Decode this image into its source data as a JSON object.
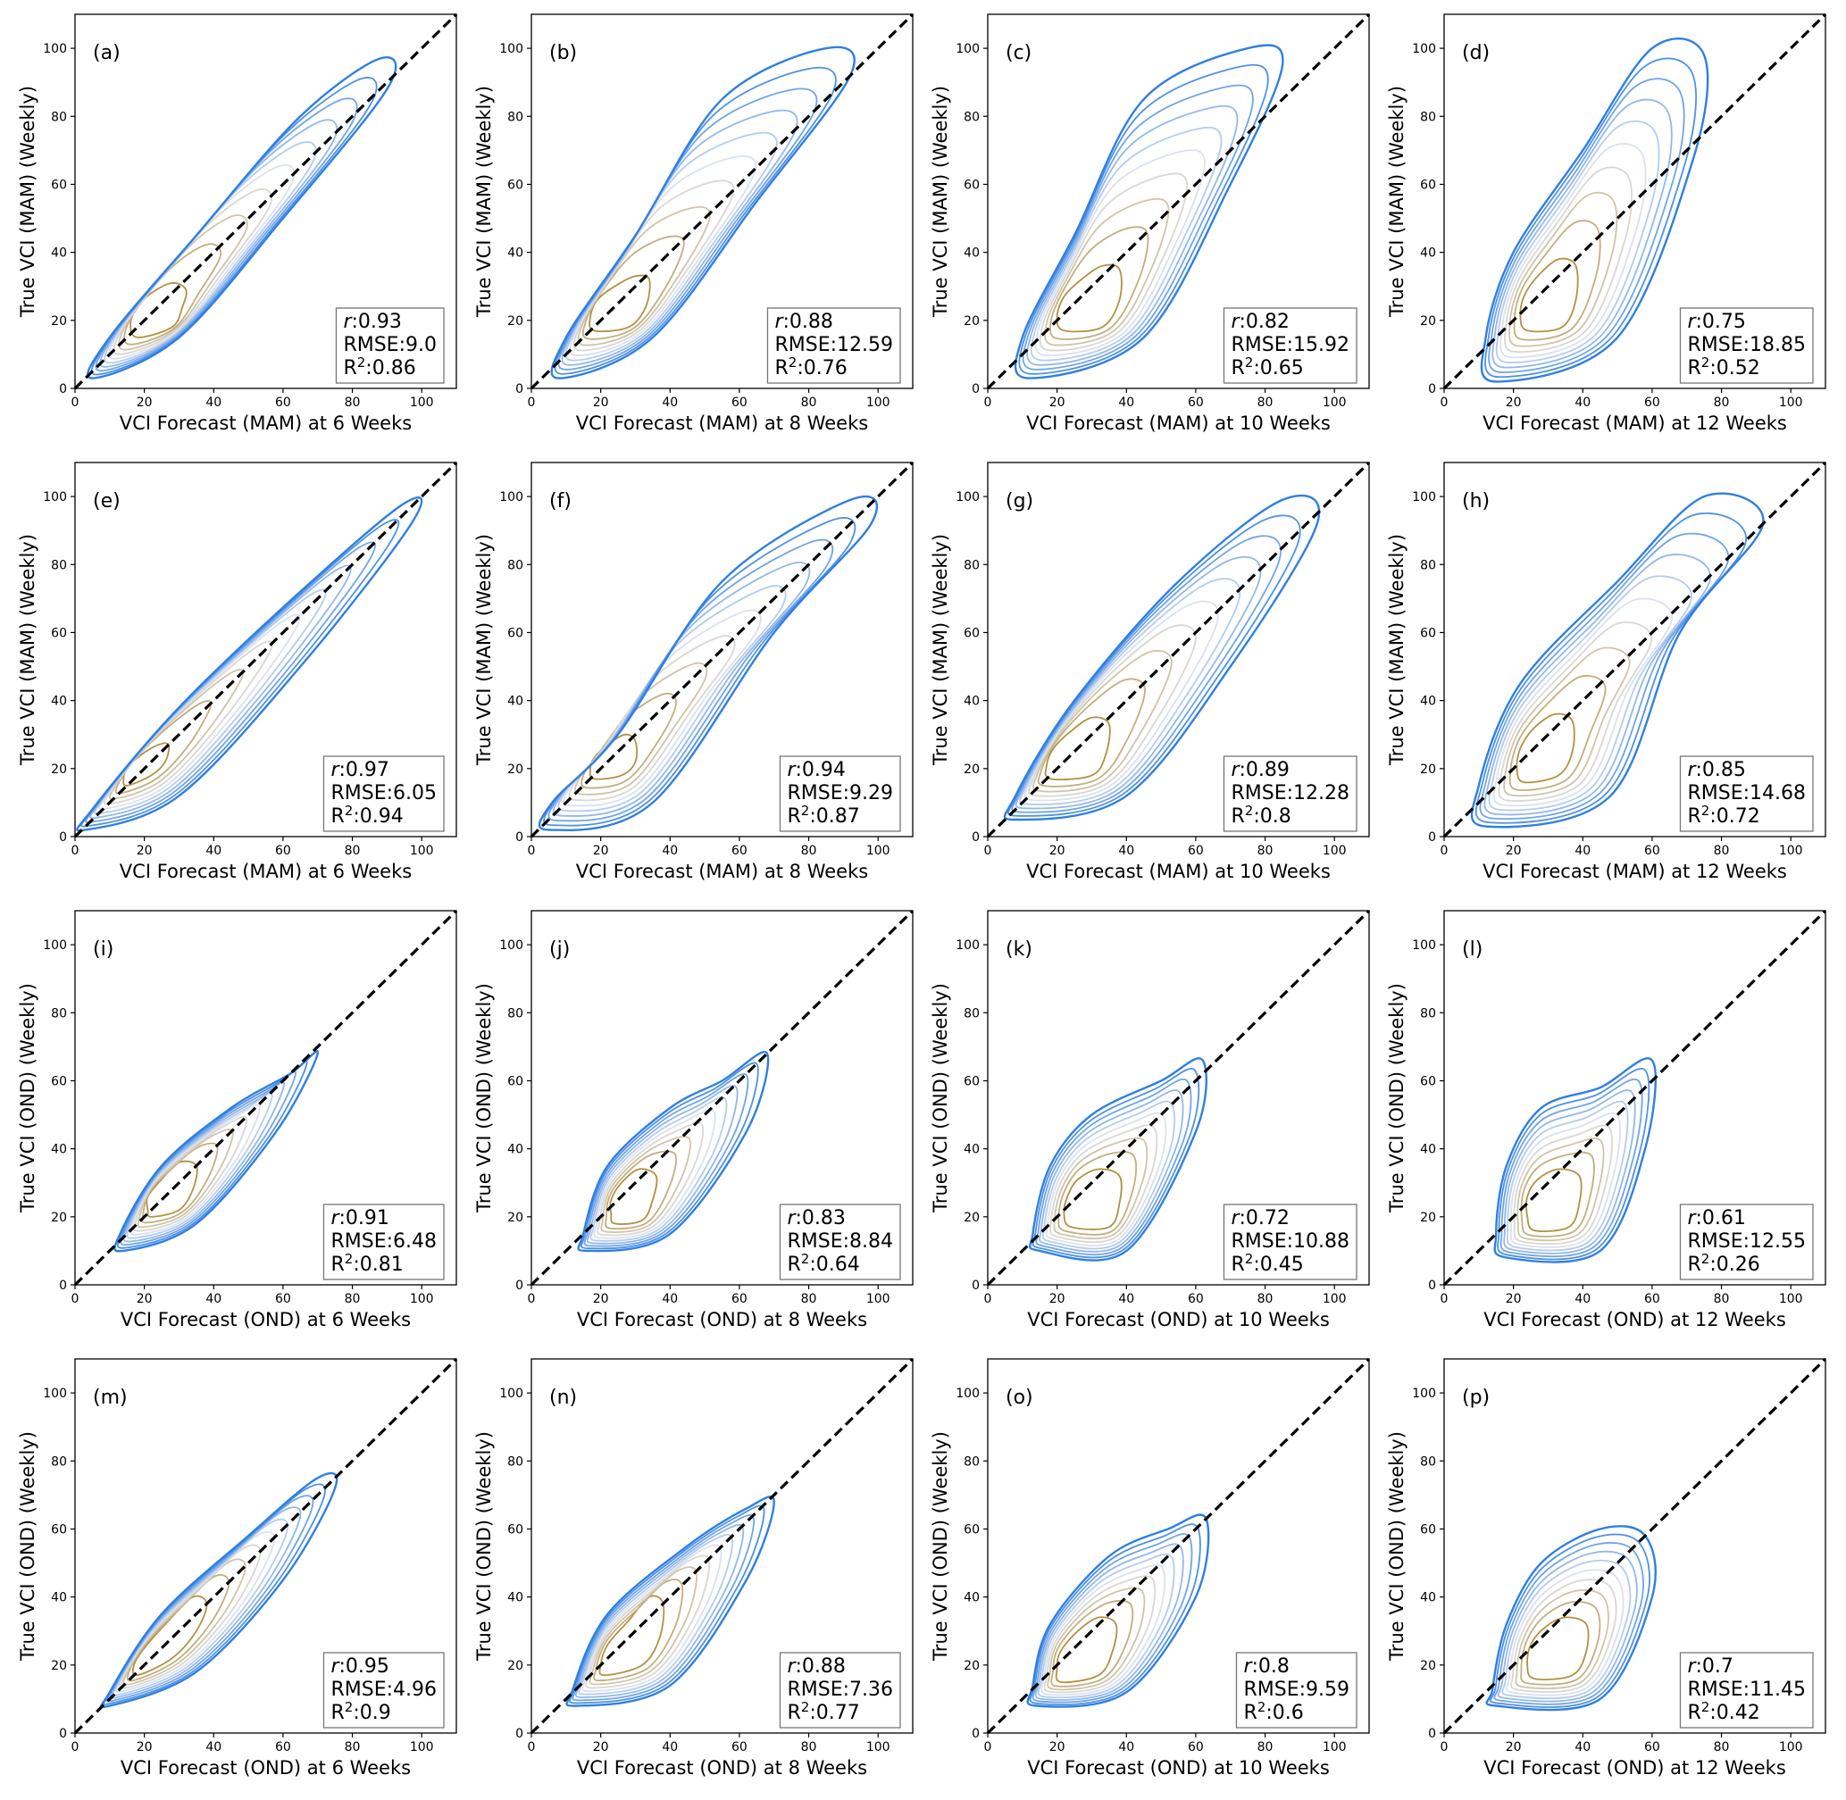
{
  "chart_data": [
    {
      "type": "kde",
      "panel": "(a)",
      "xlabel": "VCI Forecast (MAM) at 6 Weeks",
      "ylabel": "True VCI (MAM) (Weekly)",
      "stats": [
        [
          "r",
          ":0.93"
        ],
        [
          "RMSE:9.0"
        ],
        [
          "R",
          "2",
          ":0.86"
        ]
      ],
      "xlim": [
        0,
        110
      ],
      "ylim": [
        0,
        110
      ],
      "xticks": [
        0,
        20,
        40,
        60,
        80,
        100
      ],
      "yticks": [
        0,
        20,
        40,
        60,
        80,
        100
      ],
      "diagonal": true,
      "colors": [
        "#b39043",
        "#e2e6ef",
        "#2f7fe3"
      ],
      "outer_x": [
        5,
        30,
        60,
        90,
        88,
        65,
        35,
        10
      ],
      "outer_y": [
        3,
        15,
        50,
        88,
        97,
        80,
        45,
        15
      ],
      "core_x": [
        18,
        28,
        31,
        32,
        28,
        22,
        18,
        16
      ],
      "core_y": [
        15,
        18,
        24,
        29,
        31,
        28,
        24,
        19
      ]
    },
    {
      "type": "kde",
      "panel": "(b)",
      "xlabel": "VCI Forecast (MAM) at 8 Weeks",
      "ylabel": "True VCI (MAM) (Weekly)",
      "stats": [
        [
          "r",
          ":0.88"
        ],
        [
          "RMSE:12.59"
        ],
        [
          "R",
          "2",
          ":0.76"
        ]
      ],
      "xlim": [
        0,
        110
      ],
      "ylim": [
        0,
        110
      ],
      "xticks": [
        0,
        20,
        40,
        60,
        80,
        100
      ],
      "yticks": [
        0,
        20,
        40,
        60,
        80,
        100
      ],
      "diagonal": true,
      "colors": [
        "#b39043",
        "#e2e6ef",
        "#2f7fe3"
      ],
      "outer_x": [
        8,
        35,
        65,
        92,
        85,
        55,
        30,
        10
      ],
      "outer_y": [
        3,
        15,
        55,
        92,
        100,
        85,
        45,
        15
      ],
      "core_x": [
        18,
        28,
        33,
        34,
        30,
        24,
        19,
        17
      ],
      "core_y": [
        17,
        18,
        24,
        32,
        33,
        30,
        26,
        21
      ]
    },
    {
      "type": "kde",
      "panel": "(c)",
      "xlabel": "VCI Forecast (MAM) at 10 Weeks",
      "ylabel": "True VCI (MAM) (Weekly)",
      "stats": [
        [
          "r",
          ":0.82"
        ],
        [
          "RMSE:15.92"
        ],
        [
          "R",
          "2",
          ":0.65"
        ]
      ],
      "xlim": [
        0,
        110
      ],
      "ylim": [
        0,
        110
      ],
      "xticks": [
        0,
        20,
        40,
        60,
        80,
        100
      ],
      "yticks": [
        0,
        20,
        40,
        60,
        80,
        100
      ],
      "diagonal": true,
      "colors": [
        "#b39043",
        "#e2e6ef",
        "#2f7fe3"
      ],
      "outer_x": [
        12,
        45,
        70,
        85,
        75,
        45,
        25,
        10
      ],
      "outer_y": [
        3,
        15,
        60,
        95,
        100,
        85,
        45,
        15
      ],
      "core_x": [
        22,
        33,
        38,
        38,
        33,
        27,
        22,
        20
      ],
      "core_y": [
        17,
        18,
        26,
        35,
        36,
        32,
        27,
        21
      ]
    },
    {
      "type": "kde",
      "panel": "(d)",
      "xlabel": "VCI Forecast (MAM) at 12 Weeks",
      "ylabel": "True VCI (MAM) (Weekly)",
      "stats": [
        [
          "r",
          ":0.75"
        ],
        [
          "RMSE:18.85"
        ],
        [
          "R",
          "2",
          ":0.52"
        ]
      ],
      "xlim": [
        0,
        110
      ],
      "ylim": [
        0,
        110
      ],
      "xticks": [
        0,
        20,
        40,
        60,
        80,
        100
      ],
      "yticks": [
        0,
        20,
        40,
        60,
        80,
        100
      ],
      "diagonal": true,
      "colors": [
        "#b39043",
        "#e2e6ef",
        "#2f7fe3"
      ],
      "outer_x": [
        15,
        50,
        72,
        75,
        60,
        40,
        20,
        12
      ],
      "outer_y": [
        2,
        15,
        68,
        98,
        100,
        70,
        40,
        15
      ],
      "core_x": [
        24,
        34,
        38,
        38,
        33,
        27,
        23,
        22
      ],
      "core_y": [
        17,
        18,
        26,
        36,
        38,
        33,
        27,
        21
      ]
    },
    {
      "type": "kde",
      "panel": "(e)",
      "xlabel": "VCI Forecast (MAM) at 6 Weeks",
      "ylabel": "True VCI (MAM) (Weekly)",
      "stats": [
        [
          "r",
          ":0.97"
        ],
        [
          "RMSE:6.05"
        ],
        [
          "R",
          "2",
          ":0.94"
        ]
      ],
      "xlim": [
        0,
        110
      ],
      "ylim": [
        0,
        110
      ],
      "xticks": [
        0,
        20,
        40,
        60,
        80,
        100
      ],
      "yticks": [
        0,
        20,
        40,
        60,
        80,
        100
      ],
      "diagonal": true,
      "colors": [
        "#b39043",
        "#e2e6ef",
        "#2f7fe3"
      ],
      "outer_x": [
        3,
        30,
        65,
        97,
        95,
        65,
        30,
        5
      ],
      "outer_y": [
        2,
        12,
        50,
        92,
        98,
        72,
        38,
        8
      ],
      "core_x": [
        15,
        22,
        26,
        27,
        24,
        19,
        15,
        14
      ],
      "core_y": [
        15,
        18,
        22,
        27,
        27,
        24,
        20,
        17
      ]
    },
    {
      "type": "kde",
      "panel": "(f)",
      "xlabel": "VCI Forecast (MAM) at 8 Weeks",
      "ylabel": "True VCI (MAM) (Weekly)",
      "stats": [
        [
          "r",
          ":0.94"
        ],
        [
          "RMSE:9.29"
        ],
        [
          "R",
          "2",
          ":0.87"
        ]
      ],
      "xlim": [
        0,
        110
      ],
      "ylim": [
        0,
        110
      ],
      "xticks": [
        0,
        20,
        40,
        60,
        80,
        100
      ],
      "yticks": [
        0,
        20,
        40,
        60,
        80,
        100
      ],
      "diagonal": true,
      "colors": [
        "#b39043",
        "#e2e6ef",
        "#2f7fe3"
      ],
      "outer_x": [
        5,
        35,
        70,
        98,
        92,
        55,
        25,
        6
      ],
      "outer_y": [
        2,
        10,
        60,
        92,
        99,
        75,
        30,
        10
      ],
      "core_x": [
        18,
        26,
        30,
        30,
        27,
        22,
        18,
        17
      ],
      "core_y": [
        17,
        18,
        22,
        28,
        30,
        27,
        23,
        20
      ]
    },
    {
      "type": "kde",
      "panel": "(g)",
      "xlabel": "VCI Forecast (MAM) at 10 Weeks",
      "ylabel": "True VCI (MAM) (Weekly)",
      "stats": [
        [
          "r",
          ":0.89"
        ],
        [
          "RMSE:12.28"
        ],
        [
          "R",
          "2",
          ":0.8"
        ]
      ],
      "xlim": [
        0,
        110
      ],
      "ylim": [
        0,
        110
      ],
      "xticks": [
        0,
        20,
        40,
        60,
        80,
        100
      ],
      "yticks": [
        0,
        20,
        40,
        60,
        80,
        100
      ],
      "diagonal": true,
      "colors": [
        "#b39043",
        "#e2e6ef",
        "#2f7fe3"
      ],
      "outer_x": [
        8,
        40,
        70,
        95,
        85,
        55,
        25,
        8
      ],
      "outer_y": [
        5,
        12,
        50,
        92,
        99,
        75,
        40,
        12
      ],
      "core_x": [
        18,
        30,
        34,
        35,
        30,
        24,
        19,
        17
      ],
      "core_y": [
        17,
        18,
        24,
        33,
        35,
        31,
        26,
        21
      ]
    },
    {
      "type": "kde",
      "panel": "(h)",
      "xlabel": "VCI Forecast (MAM) at 12 Weeks",
      "ylabel": "True VCI (MAM) (Weekly)",
      "stats": [
        [
          "r",
          ":0.85"
        ],
        [
          "RMSE:14.68"
        ],
        [
          "R",
          "2",
          ":0.72"
        ]
      ],
      "xlim": [
        0,
        110
      ],
      "ylim": [
        0,
        110
      ],
      "xticks": [
        0,
        20,
        40,
        60,
        80,
        100
      ],
      "yticks": [
        0,
        20,
        40,
        60,
        80,
        100
      ],
      "diagonal": true,
      "colors": [
        "#b39043",
        "#e2e6ef",
        "#2f7fe3"
      ],
      "outer_x": [
        12,
        48,
        68,
        92,
        75,
        50,
        22,
        10
      ],
      "outer_y": [
        3,
        12,
        60,
        92,
        100,
        75,
        45,
        15
      ],
      "core_x": [
        23,
        33,
        37,
        37,
        32,
        26,
        22,
        21
      ],
      "core_y": [
        16,
        18,
        25,
        34,
        36,
        32,
        26,
        20
      ]
    },
    {
      "type": "kde",
      "panel": "(i)",
      "xlabel": "VCI Forecast (OND) at 6 Weeks",
      "ylabel": "True VCI (OND) (Weekly)",
      "stats": [
        [
          "r",
          ":0.91"
        ],
        [
          "RMSE:6.48"
        ],
        [
          "R",
          "2",
          ":0.81"
        ]
      ],
      "xlim": [
        0,
        110
      ],
      "ylim": [
        0,
        110
      ],
      "xticks": [
        0,
        20,
        40,
        60,
        80,
        100
      ],
      "yticks": [
        0,
        20,
        40,
        60,
        80,
        100
      ],
      "diagonal": true,
      "colors": [
        "#b39043",
        "#e2e6ef",
        "#2f7fe3"
      ],
      "outer_x": [
        14,
        35,
        58,
        70,
        62,
        45,
        25,
        13
      ],
      "outer_y": [
        10,
        18,
        45,
        68,
        62,
        52,
        35,
        15
      ],
      "core_x": [
        22,
        30,
        34,
        35,
        30,
        25,
        21,
        21
      ],
      "core_y": [
        20,
        22,
        28,
        35,
        36,
        31,
        26,
        22
      ]
    },
    {
      "type": "kde",
      "panel": "(j)",
      "xlabel": "VCI Forecast (OND) at 8 Weeks",
      "ylabel": "True VCI (OND) (Weekly)",
      "stats": [
        [
          "r",
          ":0.83"
        ],
        [
          "RMSE:8.84"
        ],
        [
          "R",
          "2",
          ":0.64"
        ]
      ],
      "xlim": [
        0,
        110
      ],
      "ylim": [
        0,
        110
      ],
      "xticks": [
        0,
        20,
        40,
        60,
        80,
        100
      ],
      "yticks": [
        0,
        20,
        40,
        60,
        80,
        100
      ],
      "diagonal": true,
      "colors": [
        "#b39043",
        "#e2e6ef",
        "#2f7fe3"
      ],
      "outer_x": [
        16,
        40,
        62,
        68,
        55,
        40,
        22,
        15
      ],
      "outer_y": [
        10,
        15,
        45,
        68,
        60,
        52,
        35,
        15
      ],
      "core_x": [
        24,
        32,
        35,
        36,
        31,
        26,
        23,
        23
      ],
      "core_y": [
        18,
        19,
        25,
        32,
        34,
        30,
        25,
        21
      ]
    },
    {
      "type": "kde",
      "panel": "(k)",
      "xlabel": "VCI Forecast (OND) at 10 Weeks",
      "ylabel": "True VCI (OND) (Weekly)",
      "stats": [
        [
          "r",
          ":0.72"
        ],
        [
          "RMSE:10.88"
        ],
        [
          "R",
          "2",
          ":0.45"
        ]
      ],
      "xlim": [
        0,
        110
      ],
      "ylim": [
        0,
        110
      ],
      "xticks": [
        0,
        20,
        40,
        60,
        80,
        100
      ],
      "yticks": [
        0,
        20,
        40,
        60,
        80,
        100
      ],
      "diagonal": true,
      "colors": [
        "#b39043",
        "#e2e6ef",
        "#2f7fe3"
      ],
      "outer_x": [
        15,
        40,
        60,
        62,
        50,
        30,
        18,
        13
      ],
      "outer_y": [
        10,
        10,
        45,
        66,
        60,
        50,
        35,
        15
      ],
      "core_x": [
        24,
        35,
        38,
        38,
        32,
        26,
        23,
        22
      ],
      "core_y": [
        17,
        17,
        24,
        32,
        34,
        31,
        26,
        21
      ]
    },
    {
      "type": "kde",
      "panel": "(l)",
      "xlabel": "VCI Forecast (OND) at 12 Weeks",
      "ylabel": "True VCI (OND) (Weekly)",
      "stats": [
        [
          "r",
          ":0.61"
        ],
        [
          "RMSE:12.55"
        ],
        [
          "R",
          "2",
          ":0.26"
        ]
      ],
      "xlim": [
        0,
        110
      ],
      "ylim": [
        0,
        110
      ],
      "xticks": [
        0,
        20,
        40,
        60,
        80,
        100
      ],
      "yticks": [
        0,
        20,
        40,
        60,
        80,
        100
      ],
      "diagonal": true,
      "colors": [
        "#b39043",
        "#e2e6ef",
        "#2f7fe3"
      ],
      "outer_x": [
        18,
        45,
        58,
        60,
        45,
        28,
        18,
        15
      ],
      "outer_y": [
        8,
        10,
        40,
        66,
        58,
        52,
        35,
        15
      ],
      "core_x": [
        26,
        36,
        39,
        39,
        33,
        27,
        24,
        24
      ],
      "core_y": [
        16,
        17,
        24,
        32,
        34,
        31,
        26,
        20
      ]
    },
    {
      "type": "kde",
      "panel": "(m)",
      "xlabel": "VCI Forecast (OND) at 6 Weeks",
      "ylabel": "True VCI (OND) (Weekly)",
      "stats": [
        [
          "r",
          ":0.95"
        ],
        [
          "RMSE:4.96"
        ],
        [
          "R",
          "2",
          ":0.9"
        ]
      ],
      "xlim": [
        0,
        110
      ],
      "ylim": [
        0,
        110
      ],
      "xticks": [
        0,
        20,
        40,
        60,
        80,
        100
      ],
      "yticks": [
        0,
        20,
        40,
        60,
        80,
        100
      ],
      "diagonal": true,
      "colors": [
        "#b39043",
        "#e2e6ef",
        "#2f7fe3"
      ],
      "outer_x": [
        10,
        35,
        60,
        75,
        70,
        50,
        25,
        10
      ],
      "outer_y": [
        8,
        18,
        45,
        72,
        75,
        58,
        35,
        12
      ],
      "core_x": [
        18,
        28,
        35,
        38,
        34,
        27,
        20,
        17
      ],
      "core_y": [
        17,
        22,
        30,
        38,
        40,
        33,
        25,
        20
      ]
    },
    {
      "type": "kde",
      "panel": "(n)",
      "xlabel": "VCI Forecast (OND) at 8 Weeks",
      "ylabel": "True VCI (OND) (Weekly)",
      "stats": [
        [
          "r",
          ":0.88"
        ],
        [
          "RMSE:7.36"
        ],
        [
          "R",
          "2",
          ":0.77"
        ]
      ],
      "xlim": [
        0,
        110
      ],
      "ylim": [
        0,
        110
      ],
      "xticks": [
        0,
        20,
        40,
        60,
        80,
        100
      ],
      "yticks": [
        0,
        20,
        40,
        60,
        80,
        100
      ],
      "diagonal": true,
      "colors": [
        "#b39043",
        "#e2e6ef",
        "#2f7fe3"
      ],
      "outer_x": [
        13,
        40,
        62,
        70,
        62,
        45,
        22,
        12
      ],
      "outer_y": [
        8,
        14,
        45,
        68,
        66,
        55,
        35,
        13
      ],
      "core_x": [
        21,
        32,
        37,
        38,
        34,
        28,
        22,
        20
      ],
      "core_y": [
        17,
        20,
        28,
        38,
        40,
        33,
        26,
        20
      ]
    },
    {
      "type": "kde",
      "panel": "(o)",
      "xlabel": "VCI Forecast (OND) at 10 Weeks",
      "ylabel": "True VCI (OND) (Weekly)",
      "stats": [
        [
          "r",
          ":0.8"
        ],
        [
          "RMSE:9.59"
        ],
        [
          "R",
          "2",
          ":0.6"
        ]
      ],
      "xlim": [
        0,
        110
      ],
      "ylim": [
        0,
        110
      ],
      "xticks": [
        0,
        20,
        40,
        60,
        80,
        100
      ],
      "yticks": [
        0,
        20,
        40,
        60,
        80,
        100
      ],
      "diagonal": true,
      "colors": [
        "#b39043",
        "#e2e6ef",
        "#2f7fe3"
      ],
      "outer_x": [
        14,
        40,
        60,
        63,
        52,
        35,
        18,
        13
      ],
      "outer_y": [
        8,
        12,
        40,
        63,
        60,
        52,
        32,
        14
      ],
      "core_x": [
        21,
        32,
        36,
        37,
        32,
        26,
        21,
        20
      ],
      "core_y": [
        15,
        17,
        24,
        32,
        34,
        30,
        24,
        19
      ]
    },
    {
      "type": "kde",
      "panel": "(p)",
      "xlabel": "VCI Forecast (OND) at 12 Weeks",
      "ylabel": "True VCI (OND) (Weekly)",
      "stats": [
        [
          "r",
          ":0.7"
        ],
        [
          "RMSE:11.45"
        ],
        [
          "R",
          "2",
          ":0.42"
        ]
      ],
      "xlim": [
        0,
        110
      ],
      "ylim": [
        0,
        110
      ],
      "xticks": [
        0,
        20,
        40,
        60,
        80,
        100
      ],
      "yticks": [
        0,
        20,
        40,
        60,
        80,
        100
      ],
      "diagonal": true,
      "colors": [
        "#b39043",
        "#e2e6ef",
        "#2f7fe3"
      ],
      "outer_x": [
        15,
        45,
        60,
        58,
        45,
        28,
        18,
        14
      ],
      "outer_y": [
        8,
        10,
        40,
        58,
        60,
        50,
        32,
        13
      ],
      "core_x": [
        26,
        37,
        41,
        41,
        35,
        29,
        25,
        24
      ],
      "core_y": [
        16,
        17,
        24,
        32,
        34,
        31,
        26,
        20
      ]
    }
  ]
}
